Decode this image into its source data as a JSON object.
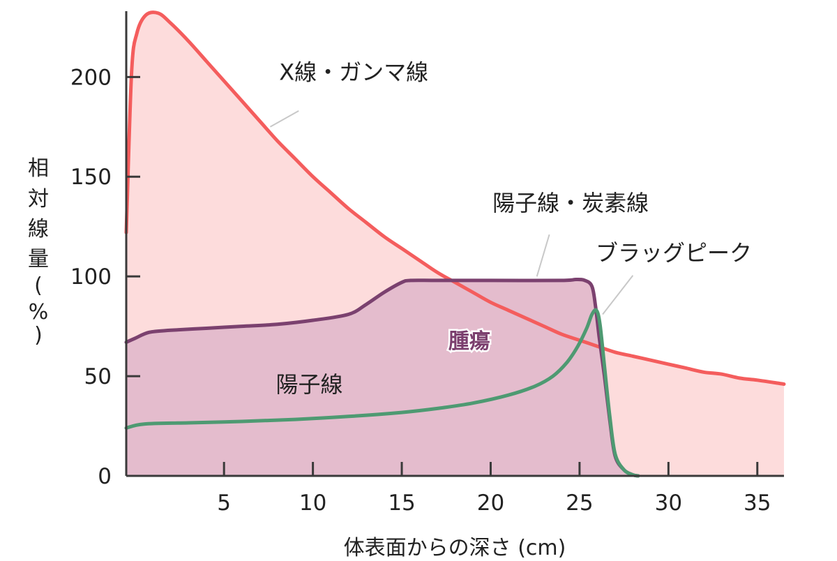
{
  "chart_data": {
    "type": "area",
    "xlabel": "体表面からの深さ (cm)",
    "ylabel": [
      "相",
      "対",
      "線",
      "量",
      "(",
      "%",
      ")"
    ],
    "xlim": [
      -0.5,
      36.5
    ],
    "ylim": [
      0,
      233
    ],
    "x_ticks": [
      {
        "value": 5,
        "label": "5"
      },
      {
        "value": 10,
        "label": "10"
      },
      {
        "value": 15,
        "label": "15"
      },
      {
        "value": 20,
        "label": "20"
      },
      {
        "value": 25,
        "label": "25"
      },
      {
        "value": 30,
        "label": "30"
      },
      {
        "value": 35,
        "label": "35"
      }
    ],
    "y_ticks": [
      {
        "value": 0,
        "label": "0"
      },
      {
        "value": 50,
        "label": "50"
      },
      {
        "value": 100,
        "label": "100"
      },
      {
        "value": 150,
        "label": "150"
      },
      {
        "value": 200,
        "label": "200"
      }
    ],
    "series": [
      {
        "name": "X線・ガンマ線",
        "color": "#f45d5d",
        "fill": "#fddcdc",
        "points": [
          [
            -0.5,
            122
          ],
          [
            -0.2,
            202
          ],
          [
            0.1,
            222
          ],
          [
            0.6,
            231
          ],
          [
            1.3,
            232
          ],
          [
            2,
            227
          ],
          [
            3,
            218
          ],
          [
            4,
            208
          ],
          [
            5,
            198
          ],
          [
            6,
            188
          ],
          [
            7,
            178
          ],
          [
            8,
            168
          ],
          [
            9,
            159
          ],
          [
            10,
            150
          ],
          [
            11,
            142
          ],
          [
            12,
            134
          ],
          [
            13,
            127
          ],
          [
            14,
            120
          ],
          [
            15,
            114
          ],
          [
            16,
            108
          ],
          [
            17,
            102
          ],
          [
            18,
            97
          ],
          [
            19,
            92
          ],
          [
            20,
            87
          ],
          [
            21,
            83
          ],
          [
            22,
            79
          ],
          [
            23,
            75
          ],
          [
            24,
            71
          ],
          [
            25,
            68
          ],
          [
            26,
            65
          ],
          [
            27,
            62
          ],
          [
            28,
            60
          ],
          [
            29,
            58
          ],
          [
            30,
            56
          ],
          [
            31,
            54
          ],
          [
            32,
            52
          ],
          [
            33,
            51
          ],
          [
            34,
            49
          ],
          [
            35,
            48
          ],
          [
            36.5,
            46
          ]
        ]
      },
      {
        "name": "陽子線・炭素線",
        "color": "#7b416f",
        "fill": "#e4bccd",
        "points": [
          [
            -0.5,
            67
          ],
          [
            0,
            69
          ],
          [
            0.8,
            72
          ],
          [
            2,
            73
          ],
          [
            4,
            74
          ],
          [
            6,
            75
          ],
          [
            8,
            76
          ],
          [
            10,
            78
          ],
          [
            12,
            81
          ],
          [
            13,
            86
          ],
          [
            14,
            92
          ],
          [
            15,
            97
          ],
          [
            15.5,
            98
          ],
          [
            17,
            98
          ],
          [
            20,
            98
          ],
          [
            24,
            98
          ],
          [
            24.8,
            98.5
          ],
          [
            25.3,
            98
          ],
          [
            25.7,
            95
          ],
          [
            25.9,
            85
          ],
          [
            26.1,
            70
          ],
          [
            26.4,
            50
          ],
          [
            26.7,
            28
          ],
          [
            27,
            10
          ],
          [
            27.5,
            3
          ],
          [
            28,
            0.5
          ],
          [
            28.3,
            0
          ]
        ]
      },
      {
        "name": "ブラッグピーク",
        "color": "#4e9a72",
        "fill": "none",
        "points": [
          [
            -0.5,
            24
          ],
          [
            0.5,
            26
          ],
          [
            3,
            26.6
          ],
          [
            6,
            27.3
          ],
          [
            9,
            28.3
          ],
          [
            12,
            29.8
          ],
          [
            15,
            31.8
          ],
          [
            17,
            33.8
          ],
          [
            19,
            36.5
          ],
          [
            21,
            40.5
          ],
          [
            22.5,
            45
          ],
          [
            23.5,
            50
          ],
          [
            24.3,
            57
          ],
          [
            24.9,
            65
          ],
          [
            25.4,
            74
          ],
          [
            25.7,
            81
          ],
          [
            25.95,
            83
          ],
          [
            26.15,
            76
          ],
          [
            26.4,
            55
          ],
          [
            26.7,
            30
          ],
          [
            27,
            11
          ],
          [
            27.5,
            3
          ],
          [
            28,
            0.5
          ],
          [
            28.3,
            0
          ]
        ]
      }
    ],
    "annotations": [
      {
        "text": "X線・ガンマ線",
        "at": [
          12.3,
          198.5
        ],
        "anchor": "middle",
        "leader": [
          [
            9.2,
            183
          ],
          [
            7.6,
            175
          ]
        ]
      },
      {
        "text": "陽子線・炭素線",
        "at": [
          24.5,
          133
        ],
        "anchor": "middle",
        "leader": [
          [
            23.3,
            121
          ],
          [
            22.6,
            100
          ]
        ]
      },
      {
        "text": "ブラッグピーク",
        "at": [
          30.3,
          108
        ],
        "anchor": "middle",
        "leader": [
          [
            28,
            100.5
          ],
          [
            26.3,
            81
          ]
        ]
      },
      {
        "text": "陽子線",
        "at": [
          9.8,
          42
        ],
        "anchor": "middle",
        "leader": []
      }
    ],
    "region_label": {
      "text": "腫瘍",
      "at": [
        18.8,
        64
      ]
    }
  }
}
